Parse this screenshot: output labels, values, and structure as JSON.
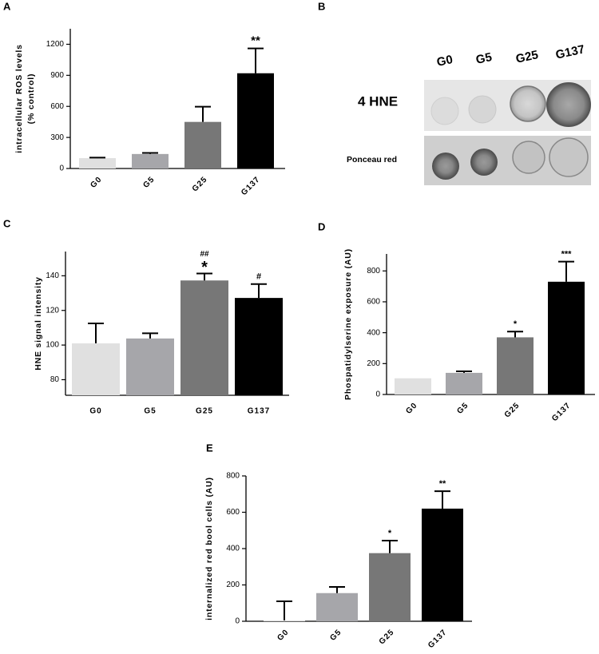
{
  "chart_data": [
    {
      "type": "bar",
      "panel_label": "A",
      "ylabel": [
        "intracellular ROS levels",
        "(% control)"
      ],
      "categories": [
        "G0",
        "G5",
        "G25",
        "G137"
      ],
      "values": [
        100,
        140,
        450,
        920
      ],
      "errors": [
        5,
        10,
        147,
        240
      ],
      "colors": [
        "#e0e0e0",
        "#a6a6aa",
        "#777777",
        "#000000"
      ],
      "ylim": [
        0,
        1350
      ],
      "yticks": [
        0,
        300,
        600,
        900,
        1200
      ],
      "annotations": [
        null,
        null,
        null,
        "**"
      ],
      "rotate_xticks": true
    },
    {
      "type": "bar",
      "panel_label": "C",
      "ylabel": [
        "HNE signal intensity"
      ],
      "categories": [
        "G0",
        "G5",
        "G25",
        "G137"
      ],
      "values": [
        101,
        103.8,
        137.3,
        127.2
      ],
      "errors": [
        11.5,
        3,
        4,
        8
      ],
      "colors": [
        "#e0e0e0",
        "#a6a6aa",
        "#777777",
        "#000000"
      ],
      "ylim": [
        71,
        154
      ],
      "yticks": [
        80,
        100,
        120,
        140
      ],
      "annotations": [
        null,
        null,
        "*",
        "#"
      ],
      "annotations_top": [
        null,
        null,
        "##",
        null
      ],
      "rotate_xticks": false
    },
    {
      "type": "bar",
      "panel_label": "D",
      "ylabel": [
        "Phospatidylserine exposure (AU)"
      ],
      "categories": [
        "G0",
        "G5",
        "G25",
        "G137"
      ],
      "values": [
        105,
        140,
        370,
        730
      ],
      "errors": [
        null,
        10,
        37,
        130
      ],
      "colors": [
        "#e0e0e0",
        "#a6a6aa",
        "#777777",
        "#000000"
      ],
      "ylim": [
        0,
        910
      ],
      "yticks": [
        0,
        200,
        400,
        600,
        800
      ],
      "annotations": [
        null,
        null,
        "*",
        "***"
      ],
      "rotate_xticks": true
    },
    {
      "type": "bar",
      "panel_label": "E",
      "ylabel": [
        "internalized red bool cells (AU)"
      ],
      "categories": [
        "G0",
        "G5",
        "G25",
        "G137"
      ],
      "values": [
        5,
        155,
        375,
        620
      ],
      "errors": [
        105,
        34,
        69,
        96
      ],
      "colors": [
        "#e0e0e0",
        "#a6a6aa",
        "#777777",
        "#000000"
      ],
      "ylim": [
        0,
        800
      ],
      "yticks": [
        0,
        200,
        400,
        600,
        800
      ],
      "annotations": [
        null,
        null,
        "*",
        "**"
      ],
      "rotate_xticks": true
    }
  ],
  "blot": {
    "panel_label": "B",
    "columns": [
      "G0",
      "G5",
      "G25",
      "G137"
    ],
    "rows": [
      "4 HNE",
      "Ponceau red"
    ]
  }
}
